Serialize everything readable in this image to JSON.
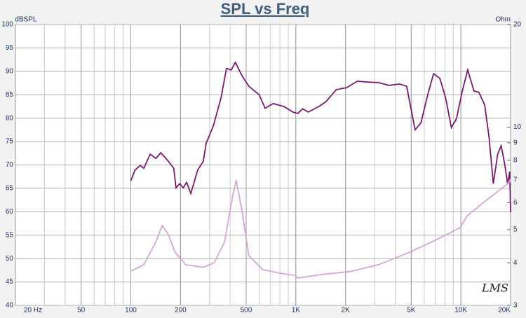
{
  "chart_data": {
    "type": "line",
    "title": "SPL vs Freq",
    "ylabel": "dBSPL",
    "y2label": "Ohm",
    "watermark": "LMS",
    "xscale": "log",
    "y2scale": "log",
    "grid": true,
    "minor_grid": true,
    "xlim": [
      20,
      20000
    ],
    "xticks": [
      {
        "value": 20,
        "label": "20 Hz"
      },
      50,
      100,
      200,
      500,
      {
        "value": 1000,
        "label": "1K"
      },
      {
        "value": 2000,
        "label": "2K"
      },
      {
        "value": 5000,
        "label": "5K"
      },
      {
        "value": 10000,
        "label": "10K"
      },
      {
        "value": 20000,
        "label": "20K"
      }
    ],
    "ylim": [
      40,
      100
    ],
    "yticks": [
      40,
      45,
      50,
      55,
      60,
      65,
      70,
      75,
      80,
      85,
      90,
      95,
      100
    ],
    "y2lim": [
      3,
      20
    ],
    "y2ticks": [
      3,
      4,
      5,
      6,
      7,
      8,
      9,
      10,
      20
    ],
    "series": [
      {
        "color": "#7a1a6e",
        "x": [
          100,
          106,
          114,
          120,
          131,
          142,
          152,
          169,
          182,
          188,
          198,
          208,
          218,
          231,
          254,
          275,
          286,
          316,
          352,
          380,
          406,
          430,
          471,
          519,
          600,
          651,
          729,
          846,
          960,
          1027,
          1100,
          1190,
          1380,
          1520,
          1760,
          2030,
          2360,
          2730,
          3170,
          3670,
          4250,
          4690,
          5280,
          5730,
          6300,
          6830,
          7460,
          8080,
          8760,
          9390,
          10200,
          11000,
          12000,
          12870,
          13940,
          14800,
          15720,
          16700,
          17550,
          18440,
          19190,
          19760,
          20000
        ],
        "values": [
          66.6,
          68.9,
          69.9,
          69.3,
          72.3,
          71.4,
          72.6,
          70.8,
          69.3,
          65.1,
          66.0,
          65.1,
          66.3,
          63.9,
          68.9,
          70.8,
          74.6,
          78.3,
          84.3,
          90.6,
          90.3,
          91.9,
          89.1,
          86.8,
          85.0,
          82.1,
          83.1,
          82.5,
          81.3,
          81.0,
          82.0,
          81.3,
          82.5,
          83.5,
          86.1,
          86.5,
          87.9,
          87.7,
          87.6,
          87.0,
          87.3,
          86.8,
          77.5,
          79.0,
          85.0,
          89.5,
          88.5,
          84.3,
          78.0,
          79.8,
          85.8,
          90.3,
          85.8,
          85.5,
          82.8,
          76.1,
          66.0,
          72.3,
          74.1,
          70.1,
          66.0,
          68.6,
          59.9
        ]
      },
      {
        "color": "#d4a6d4",
        "axis": "y2",
        "x": [
          100,
          120,
          142,
          155,
          169,
          185,
          215,
          275,
          320,
          370,
          406,
          435,
          471,
          519,
          630,
          800,
          1000,
          1027,
          1450,
          2140,
          3170,
          4690,
          7000,
          9900,
          10900,
          13900,
          17000,
          19760,
          20000
        ],
        "values": [
          3.78,
          3.95,
          4.61,
          5.14,
          4.84,
          4.3,
          3.95,
          3.88,
          4.0,
          4.61,
          5.98,
          7.0,
          5.71,
          4.2,
          3.82,
          3.73,
          3.67,
          3.61,
          3.7,
          3.77,
          3.95,
          4.26,
          4.66,
          5.07,
          5.49,
          6.04,
          6.52,
          6.9,
          7.06
        ]
      }
    ]
  }
}
